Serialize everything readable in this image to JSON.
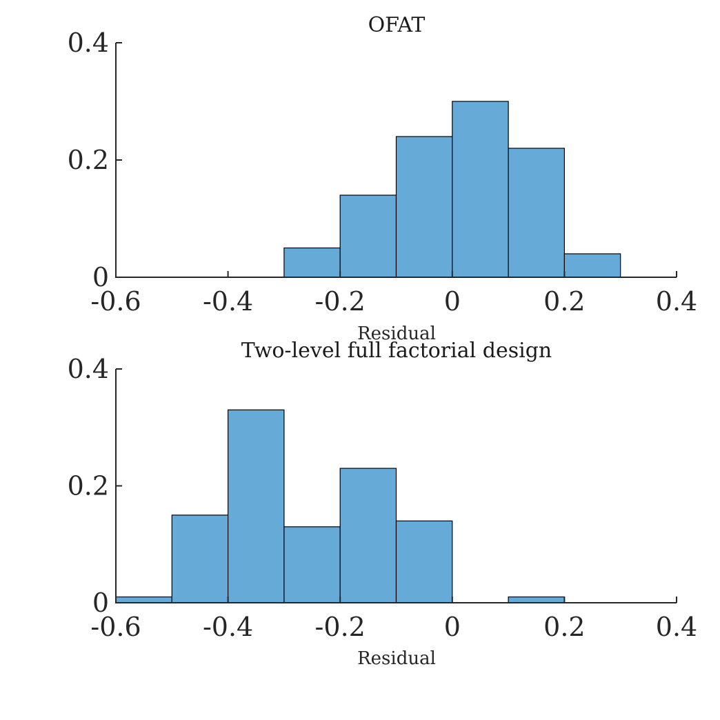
{
  "chart_data": [
    {
      "type": "bar",
      "title": "OFAT",
      "xlabel": "Residual",
      "ylabel": "",
      "xlim": [
        -0.6,
        0.4
      ],
      "ylim": [
        0,
        0.4
      ],
      "xticks": [
        "-0.6",
        "-0.4",
        "-0.2",
        "0",
        "0.2",
        "0.4"
      ],
      "xtick_values": [
        -0.6,
        -0.4,
        -0.2,
        0,
        0.2,
        0.4
      ],
      "yticks": [
        "0",
        "0.2",
        "0.4"
      ],
      "ytick_values": [
        0,
        0.2,
        0.4
      ],
      "bin_edges": [
        -0.6,
        -0.5,
        -0.4,
        -0.3,
        -0.2,
        -0.1,
        0,
        0.1,
        0.2,
        0.3,
        0.4
      ],
      "values": [
        0,
        0,
        0,
        0.05,
        0.14,
        0.24,
        0.3,
        0.22,
        0.04,
        0
      ],
      "bar_color": "#66aad7",
      "grid": false
    },
    {
      "type": "bar",
      "title": "Two-level full factorial design",
      "xlabel": "Residual",
      "ylabel": "",
      "xlim": [
        -0.6,
        0.4
      ],
      "ylim": [
        0,
        0.4
      ],
      "xticks": [
        "-0.6",
        "-0.4",
        "-0.2",
        "0",
        "0.2",
        "0.4"
      ],
      "xtick_values": [
        -0.6,
        -0.4,
        -0.2,
        0,
        0.2,
        0.4
      ],
      "yticks": [
        "0",
        "0.2",
        "0.4"
      ],
      "ytick_values": [
        0,
        0.2,
        0.4
      ],
      "bin_edges": [
        -0.6,
        -0.5,
        -0.4,
        -0.3,
        -0.2,
        -0.1,
        0,
        0.1,
        0.2,
        0.3,
        0.4
      ],
      "values": [
        0.01,
        0.15,
        0.33,
        0.13,
        0.23,
        0.14,
        0,
        0.01,
        0,
        0
      ],
      "bar_color": "#66aad7",
      "grid": false
    }
  ]
}
